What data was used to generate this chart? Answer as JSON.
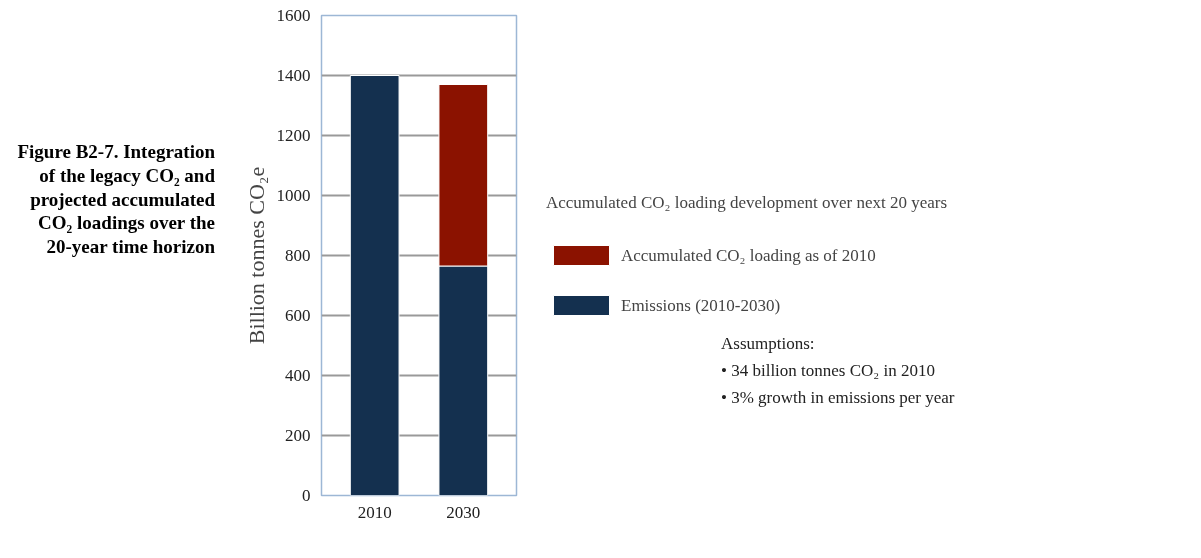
{
  "chart_data": {
    "type": "bar",
    "title": "Figure B2-7. Integration of the legacy CO₂ and projected accumulated CO₂ loadings over the 20-year time horizon",
    "ylabel": "Billion tonnes CO₂e",
    "legend_title": "Accumulated CO₂ loading development over next 20 years",
    "categories": [
      "2010",
      "2030"
    ],
    "stacked": true,
    "series": [
      {
        "name": "Emissions (2010-2030)",
        "color": "#14304f",
        "values": [
          1400,
          765
        ]
      },
      {
        "name": "Accumulated CO₂ loading as of 2010",
        "color": "#8b1200",
        "values": [
          null,
          605
        ]
      }
    ],
    "ylim": [
      0,
      1600
    ],
    "yticks": [
      0,
      200,
      400,
      600,
      800,
      1000,
      1200,
      1400,
      1600
    ],
    "grid": "y",
    "legend": "right",
    "annotations": [
      "Assumptions:",
      "• 34 billion tonnes CO₂ in 2010",
      "• 3% growth in emissions per year"
    ]
  }
}
